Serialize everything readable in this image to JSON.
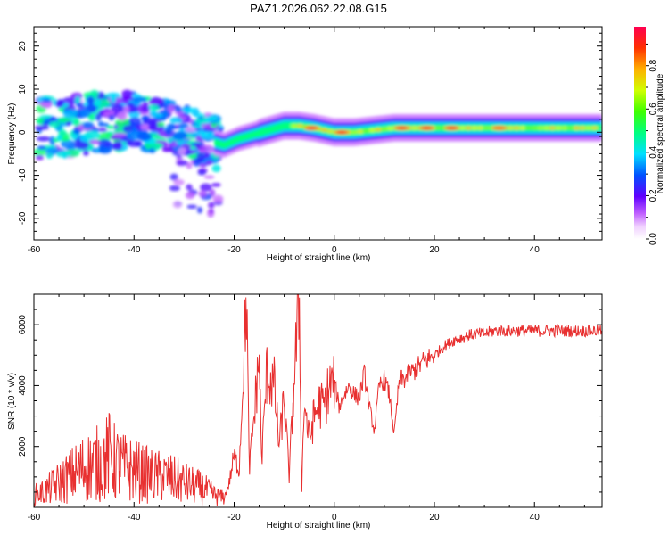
{
  "figure": {
    "title": "PAZ1.2026.062.22.08.G15"
  },
  "chart_data": [
    {
      "type": "heatmap",
      "xlabel": "Height of straight line (km)",
      "ylabel": "Frequency (Hz)",
      "xlim": [
        -60,
        53.5
      ],
      "ylim": [
        -25,
        24.5
      ],
      "xticks": [
        -60,
        -40,
        -20,
        0,
        20,
        40
      ],
      "yticks": [
        -20,
        -10,
        0,
        10,
        20
      ],
      "colorbar": {
        "label": "Normalized spectral amplitude",
        "range": [
          0,
          0.98
        ],
        "ticks": [
          0.0,
          0.2,
          0.4,
          0.6,
          0.8
        ],
        "tick_labels": [
          "0.0",
          "0.2",
          "0.4",
          "0.6",
          "0.8"
        ],
        "colormap": "hsv"
      },
      "ridge": {
        "x": [
          -58,
          -50,
          -42,
          -35,
          -30,
          -25,
          -22,
          -19,
          -16,
          -13,
          -10,
          -7,
          -4,
          0,
          4,
          8,
          12,
          16,
          20,
          25,
          30,
          35,
          40,
          45,
          50,
          53.5
        ],
        "y": [
          1,
          2,
          2.5,
          2,
          1,
          -2,
          -3,
          -1.5,
          -0.5,
          0.5,
          1.5,
          1.5,
          1,
          0,
          0,
          0.5,
          1,
          1,
          1,
          1,
          1,
          1,
          1,
          1,
          1,
          1
        ]
      },
      "hot_spots": [
        {
          "x": -4.5,
          "y": 1,
          "amp": 0.95
        },
        {
          "x": 1.5,
          "y": 0,
          "amp": 0.95
        },
        {
          "x": 13.5,
          "y": 1,
          "amp": 0.92
        },
        {
          "x": 18.5,
          "y": 1,
          "amp": 0.92
        },
        {
          "x": 23.5,
          "y": 1,
          "amp": 0.92
        },
        {
          "x": 33,
          "y": 1,
          "amp": 0.85
        }
      ]
    },
    {
      "type": "line",
      "xlabel": "Height of straight line (km)",
      "ylabel": "SNR (10 * v/v)",
      "xlim": [
        -60,
        53.5
      ],
      "ylim": [
        0,
        7000
      ],
      "xticks": [
        -60,
        -40,
        -20,
        0,
        20,
        40
      ],
      "yticks": [
        2000,
        4000,
        6000
      ],
      "color": "#e83030",
      "series": [
        {
          "x": [
            -60,
            -58,
            -56,
            -54,
            -52,
            -50,
            -48,
            -46,
            -45,
            -44,
            -42,
            -40,
            -38,
            -36,
            -34,
            -32,
            -30,
            -28,
            -26,
            -24,
            -22,
            -21,
            -20,
            -19,
            -18.5,
            -17.5,
            -17,
            -16,
            -15,
            -14.5,
            -13.5,
            -12,
            -11,
            -10,
            -9,
            -8,
            -7,
            -6.5,
            -6,
            -5,
            -4,
            -3,
            -2,
            -1,
            0,
            1,
            2,
            3,
            4,
            5,
            6,
            7,
            8,
            9,
            10,
            11,
            12,
            13,
            14,
            15,
            16,
            18,
            20,
            22,
            24,
            26,
            28,
            30,
            32,
            34,
            36,
            38,
            40,
            42,
            44,
            46,
            48,
            50,
            52,
            53.5
          ],
          "y": [
            400,
            500,
            700,
            900,
            1100,
            1300,
            1400,
            1500,
            1700,
            1500,
            1300,
            1200,
            1100,
            1000,
            1000,
            900,
            800,
            700,
            600,
            400,
            300,
            800,
            1700,
            1200,
            3300,
            7000,
            1200,
            3000,
            5000,
            1500,
            4400,
            4000,
            2000,
            3600,
            1000,
            4200,
            7000,
            500,
            3500,
            2200,
            3000,
            3400,
            3300,
            4000,
            4100,
            3300,
            3700,
            4000,
            3700,
            3600,
            4400,
            3300,
            2500,
            4000,
            4200,
            3700,
            2400,
            4200,
            4200,
            4400,
            4500,
            4800,
            5000,
            5300,
            5500,
            5600,
            5700,
            5700,
            5800,
            5800,
            5800,
            5800,
            5800,
            5800,
            5800,
            5800,
            5800,
            5800,
            5800,
            5800
          ]
        }
      ]
    }
  ]
}
